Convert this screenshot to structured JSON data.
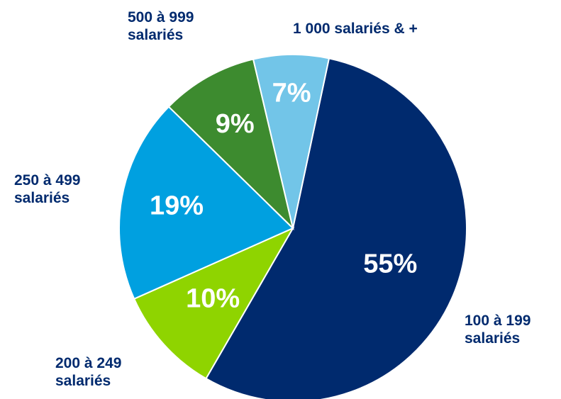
{
  "chart_data": {
    "type": "pie",
    "categories": [
      "100 à 199 salariés",
      "200 à 249 salariés",
      "250 à 499 salariés",
      "500 à 999 salariés",
      "1 000 salariés & +"
    ],
    "values": [
      55,
      10,
      19,
      9,
      7
    ],
    "value_labels": [
      "55%",
      "10%",
      "19%",
      "9%",
      "7%"
    ],
    "colors": [
      "#002a6e",
      "#8fd400",
      "#00a0e0",
      "#3d8b2f",
      "#72c5e8"
    ]
  }
}
